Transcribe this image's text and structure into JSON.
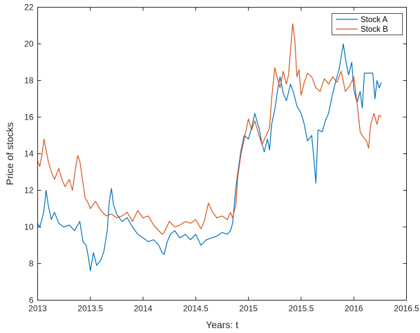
{
  "chart_data": {
    "type": "line",
    "title": "",
    "xlabel": "Years: t",
    "ylabel": "Price of stocks",
    "xlim": [
      2013,
      2016.5
    ],
    "ylim": [
      6,
      22
    ],
    "xticks": [
      2013,
      2013.5,
      2014,
      2014.5,
      2015,
      2015.5,
      2016,
      2016.5
    ],
    "xtick_labels": [
      "2013",
      "2013.5",
      "2014",
      "2014.5",
      "2015",
      "2015.5",
      "2016",
      "2016.5"
    ],
    "yticks": [
      6,
      8,
      10,
      12,
      14,
      16,
      18,
      20,
      22
    ],
    "ytick_labels": [
      "6",
      "8",
      "10",
      "12",
      "14",
      "16",
      "18",
      "20",
      "22"
    ],
    "grid": false,
    "legend_position": "top-right",
    "series": [
      {
        "name": "Stock A",
        "color": "#0072BD",
        "x": [
          2013.0,
          2013.02,
          2013.04,
          2013.06,
          2013.08,
          2013.1,
          2013.13,
          2013.16,
          2013.2,
          2013.25,
          2013.3,
          2013.35,
          2013.4,
          2013.43,
          2013.46,
          2013.48,
          2013.5,
          2013.53,
          2013.56,
          2013.6,
          2013.63,
          2013.66,
          2013.68,
          2013.7,
          2013.72,
          2013.75,
          2013.8,
          2013.85,
          2013.9,
          2013.95,
          2014.0,
          2014.05,
          2014.1,
          2014.15,
          2014.18,
          2014.2,
          2014.23,
          2014.26,
          2014.3,
          2014.35,
          2014.4,
          2014.45,
          2014.5,
          2014.55,
          2014.6,
          2014.65,
          2014.7,
          2014.75,
          2014.8,
          2014.83,
          2014.85,
          2014.88,
          2014.9,
          2014.93,
          2014.96,
          2015.0,
          2015.03,
          2015.06,
          2015.1,
          2015.13,
          2015.15,
          2015.18,
          2015.2,
          2015.22,
          2015.25,
          2015.28,
          2015.3,
          2015.33,
          2015.36,
          2015.4,
          2015.43,
          2015.46,
          2015.5,
          2015.53,
          2015.56,
          2015.6,
          2015.62,
          2015.64,
          2015.66,
          2015.7,
          2015.73,
          2015.76,
          2015.8,
          2015.83,
          2015.86,
          2015.88,
          2015.9,
          2015.92,
          2015.95,
          2015.98,
          2016.0,
          2016.03,
          2016.06,
          2016.08,
          2016.1,
          2016.12,
          2016.15,
          2016.18,
          2016.2,
          2016.22,
          2016.24,
          2016.26
        ],
        "y": [
          10.2,
          10.0,
          10.4,
          10.9,
          12.0,
          11.2,
          10.4,
          10.8,
          10.2,
          10.0,
          10.1,
          9.8,
          10.3,
          9.2,
          9.0,
          8.4,
          7.6,
          8.6,
          7.9,
          8.2,
          8.7,
          9.8,
          11.4,
          12.1,
          11.2,
          10.7,
          10.3,
          10.5,
          10.0,
          9.6,
          9.4,
          9.2,
          9.3,
          9.0,
          8.6,
          8.5,
          9.2,
          9.6,
          9.8,
          9.4,
          9.6,
          9.3,
          9.6,
          9.0,
          9.3,
          9.4,
          9.5,
          9.7,
          9.6,
          9.8,
          10.2,
          12.1,
          13.0,
          14.2,
          15.0,
          14.8,
          15.4,
          16.2,
          15.4,
          14.5,
          14.1,
          14.8,
          14.2,
          15.6,
          16.4,
          17.6,
          18.2,
          17.3,
          16.9,
          17.8,
          17.3,
          16.6,
          16.2,
          15.6,
          14.7,
          15.0,
          13.8,
          12.4,
          15.3,
          15.2,
          15.8,
          16.2,
          17.3,
          18.0,
          18.6,
          19.3,
          20.0,
          19.2,
          18.3,
          19.0,
          17.5,
          16.8,
          17.4,
          16.5,
          18.4,
          18.4,
          18.4,
          18.4,
          17.0,
          18.0,
          17.6,
          17.9
        ]
      },
      {
        "name": "Stock B",
        "color": "#D95319",
        "x": [
          2013.0,
          2013.02,
          2013.04,
          2013.06,
          2013.08,
          2013.1,
          2013.13,
          2013.16,
          2013.2,
          2013.23,
          2013.26,
          2013.3,
          2013.33,
          2013.36,
          2013.38,
          2013.4,
          2013.42,
          2013.45,
          2013.48,
          2013.5,
          2013.55,
          2013.6,
          2013.65,
          2013.7,
          2013.75,
          2013.8,
          2013.85,
          2013.9,
          2013.95,
          2014.0,
          2014.05,
          2014.1,
          2014.15,
          2014.18,
          2014.2,
          2014.25,
          2014.3,
          2014.35,
          2014.4,
          2014.45,
          2014.5,
          2014.55,
          2014.58,
          2014.62,
          2014.66,
          2014.7,
          2014.75,
          2014.8,
          2014.83,
          2014.85,
          2014.88,
          2014.9,
          2014.93,
          2014.96,
          2015.0,
          2015.03,
          2015.06,
          2015.1,
          2015.13,
          2015.16,
          2015.2,
          2015.22,
          2015.25,
          2015.28,
          2015.3,
          2015.33,
          2015.36,
          2015.38,
          2015.4,
          2015.42,
          2015.44,
          2015.46,
          2015.48,
          2015.5,
          2015.53,
          2015.56,
          2015.6,
          2015.64,
          2015.68,
          2015.72,
          2015.76,
          2015.8,
          2015.84,
          2015.88,
          2015.92,
          2015.96,
          2016.0,
          2016.03,
          2016.06,
          2016.09,
          2016.12,
          2016.14,
          2016.16,
          2016.19,
          2016.22,
          2016.24,
          2016.26
        ],
        "y": [
          13.6,
          13.3,
          13.9,
          14.8,
          14.2,
          13.6,
          13.0,
          12.6,
          13.2,
          12.6,
          12.2,
          12.6,
          12.0,
          13.2,
          13.9,
          13.6,
          12.8,
          11.6,
          11.3,
          11.0,
          11.4,
          10.9,
          10.6,
          10.7,
          10.5,
          10.6,
          10.8,
          10.3,
          10.9,
          10.5,
          10.6,
          10.1,
          9.8,
          9.6,
          9.7,
          10.3,
          10.0,
          10.1,
          10.3,
          10.2,
          10.4,
          9.9,
          10.3,
          11.3,
          10.8,
          10.5,
          10.6,
          10.4,
          10.8,
          10.5,
          11.2,
          12.8,
          14.0,
          14.8,
          15.9,
          15.3,
          15.8,
          15.0,
          14.5,
          14.9,
          15.4,
          17.0,
          18.7,
          18.0,
          17.6,
          18.5,
          17.8,
          18.3,
          19.7,
          21.1,
          20.2,
          18.2,
          18.6,
          17.2,
          17.9,
          18.4,
          18.2,
          17.6,
          17.4,
          18.1,
          17.8,
          18.2,
          17.9,
          18.5,
          17.4,
          17.7,
          18.2,
          16.8,
          15.2,
          14.9,
          14.7,
          14.3,
          15.6,
          16.2,
          15.6,
          16.1,
          16.0
        ]
      }
    ]
  }
}
